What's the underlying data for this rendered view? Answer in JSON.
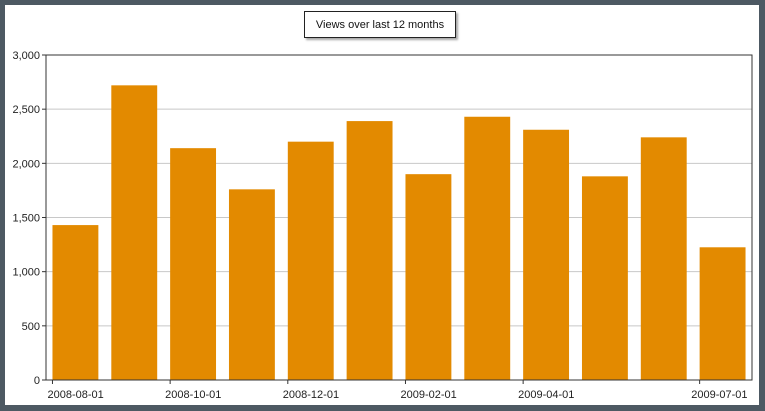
{
  "chart_data": {
    "type": "bar",
    "title": "Views over last 12 months",
    "categories": [
      "2008-08-01",
      "2008-09-01",
      "2008-10-01",
      "2008-11-01",
      "2008-12-01",
      "2009-01-01",
      "2009-02-01",
      "2009-03-01",
      "2009-04-01",
      "2009-05-01",
      "2009-06-01",
      "2009-07-01"
    ],
    "x_tick_labels": [
      "2008-08-01",
      "2008-10-01",
      "2008-12-01",
      "2009-02-01",
      "2009-04-01",
      "2009-07-01"
    ],
    "values": [
      1430,
      2720,
      2140,
      1760,
      2200,
      2390,
      1900,
      2430,
      2310,
      1880,
      2240,
      1225
    ],
    "ylim": [
      0,
      3000
    ],
    "y_ticks": [
      0,
      500,
      1000,
      1500,
      2000,
      2500,
      3000
    ],
    "y_tick_labels": [
      "0",
      "500",
      "1,000",
      "1,500",
      "2,000",
      "2,500",
      "3,000"
    ],
    "xlabel": "",
    "ylabel": "",
    "grid": true,
    "legend_placement": "top-center",
    "colors": {
      "bar": "#e38a00",
      "background": "#4d5963",
      "plot_background": "#ffffff",
      "gridline": "#c8c8c8"
    }
  }
}
